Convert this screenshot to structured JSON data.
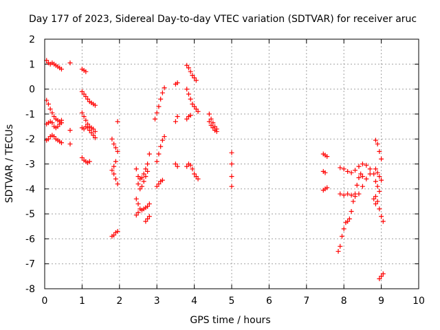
{
  "chart_data": {
    "type": "scatter",
    "title": "Day 177 of 2023, Sidereal Day-to-day VTEC variation (SDTVAR) for receiver aruc",
    "xlabel": "GPS time / hours",
    "ylabel": "SDTVAR / TECUs",
    "xlim": [
      0,
      10
    ],
    "ylim": [
      -8,
      2
    ],
    "xticks": [
      0,
      1,
      2,
      3,
      4,
      5,
      6,
      7,
      8,
      9,
      10
    ],
    "yticks": [
      -8,
      -7,
      -6,
      -5,
      -4,
      -3,
      -2,
      -1,
      0,
      1,
      2
    ],
    "grid": true,
    "marker": "+",
    "marker_color": "#ff0000",
    "series": [
      {
        "name": "SDTVAR",
        "points": [
          [
            0.05,
            1.15
          ],
          [
            0.1,
            1.05
          ],
          [
            0.15,
            1.0
          ],
          [
            0.2,
            1.05
          ],
          [
            0.25,
            1.0
          ],
          [
            0.3,
            0.95
          ],
          [
            0.35,
            0.9
          ],
          [
            0.4,
            0.85
          ],
          [
            0.45,
            0.8
          ],
          [
            0.68,
            1.05
          ],
          [
            0.05,
            -0.45
          ],
          [
            0.1,
            -0.6
          ],
          [
            0.15,
            -0.8
          ],
          [
            0.2,
            -0.95
          ],
          [
            0.25,
            -1.1
          ],
          [
            0.3,
            -1.2
          ],
          [
            0.35,
            -1.25
          ],
          [
            0.4,
            -1.3
          ],
          [
            0.45,
            -1.25
          ],
          [
            0.05,
            -1.4
          ],
          [
            0.1,
            -1.35
          ],
          [
            0.15,
            -1.3
          ],
          [
            0.2,
            -1.35
          ],
          [
            0.25,
            -1.5
          ],
          [
            0.3,
            -1.55
          ],
          [
            0.35,
            -1.5
          ],
          [
            0.4,
            -1.4
          ],
          [
            0.45,
            -1.35
          ],
          [
            0.05,
            -2.05
          ],
          [
            0.1,
            -2.0
          ],
          [
            0.15,
            -1.9
          ],
          [
            0.2,
            -1.85
          ],
          [
            0.25,
            -1.9
          ],
          [
            0.3,
            -2.0
          ],
          [
            0.35,
            -2.05
          ],
          [
            0.4,
            -2.1
          ],
          [
            0.45,
            -2.15
          ],
          [
            0.68,
            -1.65
          ],
          [
            0.68,
            -2.2
          ],
          [
            1.0,
            0.8
          ],
          [
            1.05,
            0.75
          ],
          [
            1.1,
            0.7
          ],
          [
            1.0,
            -0.1
          ],
          [
            1.05,
            -0.2
          ],
          [
            1.1,
            -0.3
          ],
          [
            1.15,
            -0.4
          ],
          [
            1.2,
            -0.5
          ],
          [
            1.25,
            -0.55
          ],
          [
            1.3,
            -0.6
          ],
          [
            1.35,
            -0.65
          ],
          [
            1.0,
            -0.95
          ],
          [
            1.05,
            -1.1
          ],
          [
            1.1,
            -1.25
          ],
          [
            1.15,
            -1.4
          ],
          [
            1.2,
            -1.5
          ],
          [
            1.25,
            -1.55
          ],
          [
            1.3,
            -1.6
          ],
          [
            1.35,
            -1.7
          ],
          [
            1.0,
            -1.55
          ],
          [
            1.05,
            -1.6
          ],
          [
            1.1,
            -1.5
          ],
          [
            1.15,
            -1.55
          ],
          [
            1.2,
            -1.65
          ],
          [
            1.25,
            -1.75
          ],
          [
            1.3,
            -1.85
          ],
          [
            1.35,
            -1.95
          ],
          [
            1.0,
            -2.75
          ],
          [
            1.05,
            -2.85
          ],
          [
            1.1,
            -2.9
          ],
          [
            1.15,
            -2.95
          ],
          [
            1.2,
            -2.9
          ],
          [
            1.8,
            -2.0
          ],
          [
            1.85,
            -2.2
          ],
          [
            1.9,
            -2.35
          ],
          [
            1.95,
            -2.5
          ],
          [
            1.8,
            -3.25
          ],
          [
            1.85,
            -3.4
          ],
          [
            1.9,
            -3.6
          ],
          [
            1.95,
            -3.8
          ],
          [
            1.85,
            -3.1
          ],
          [
            1.9,
            -2.9
          ],
          [
            1.8,
            -5.9
          ],
          [
            1.85,
            -5.85
          ],
          [
            1.9,
            -5.75
          ],
          [
            1.95,
            -5.7
          ],
          [
            1.95,
            -1.3
          ],
          [
            2.45,
            -3.2
          ],
          [
            2.5,
            -3.5
          ],
          [
            2.55,
            -3.6
          ],
          [
            2.6,
            -3.55
          ],
          [
            2.65,
            -3.4
          ],
          [
            2.7,
            -3.2
          ],
          [
            2.75,
            -3.0
          ],
          [
            2.8,
            -2.6
          ],
          [
            2.45,
            -4.4
          ],
          [
            2.5,
            -4.6
          ],
          [
            2.55,
            -4.8
          ],
          [
            2.6,
            -4.85
          ],
          [
            2.65,
            -4.8
          ],
          [
            2.7,
            -4.75
          ],
          [
            2.75,
            -4.7
          ],
          [
            2.8,
            -4.6
          ],
          [
            2.5,
            -3.8
          ],
          [
            2.55,
            -4.0
          ],
          [
            2.6,
            -3.9
          ],
          [
            2.65,
            -3.7
          ],
          [
            2.7,
            -3.5
          ],
          [
            2.75,
            -3.3
          ],
          [
            2.45,
            -5.05
          ],
          [
            2.5,
            -4.95
          ],
          [
            2.7,
            -5.3
          ],
          [
            2.75,
            -5.2
          ],
          [
            2.8,
            -5.1
          ],
          [
            3.0,
            -0.95
          ],
          [
            3.05,
            -0.7
          ],
          [
            3.1,
            -0.4
          ],
          [
            3.15,
            -0.15
          ],
          [
            3.2,
            0.05
          ],
          [
            2.95,
            -1.2
          ],
          [
            3.0,
            -2.9
          ],
          [
            3.05,
            -2.6
          ],
          [
            3.1,
            -2.3
          ],
          [
            3.15,
            -2.05
          ],
          [
            3.2,
            -1.9
          ],
          [
            3.0,
            -3.9
          ],
          [
            3.05,
            -3.8
          ],
          [
            3.1,
            -3.7
          ],
          [
            3.15,
            -3.65
          ],
          [
            3.5,
            0.2
          ],
          [
            3.55,
            0.25
          ],
          [
            3.5,
            -1.3
          ],
          [
            3.55,
            -1.1
          ],
          [
            3.5,
            -3.0
          ],
          [
            3.55,
            -3.1
          ],
          [
            3.8,
            0.95
          ],
          [
            3.85,
            0.85
          ],
          [
            3.9,
            0.7
          ],
          [
            3.95,
            0.55
          ],
          [
            4.0,
            0.45
          ],
          [
            4.05,
            0.35
          ],
          [
            3.8,
            0.0
          ],
          [
            3.85,
            -0.2
          ],
          [
            3.9,
            -0.4
          ],
          [
            3.95,
            -0.6
          ],
          [
            4.0,
            -0.7
          ],
          [
            4.05,
            -0.8
          ],
          [
            4.1,
            -0.9
          ],
          [
            3.8,
            -1.2
          ],
          [
            3.85,
            -1.1
          ],
          [
            3.9,
            -1.05
          ],
          [
            3.8,
            -3.1
          ],
          [
            3.85,
            -3.0
          ],
          [
            3.9,
            -3.05
          ],
          [
            3.95,
            -3.2
          ],
          [
            4.0,
            -3.4
          ],
          [
            4.05,
            -3.5
          ],
          [
            4.1,
            -3.6
          ],
          [
            4.4,
            -1.0
          ],
          [
            4.45,
            -1.2
          ],
          [
            4.5,
            -1.35
          ],
          [
            4.55,
            -1.5
          ],
          [
            4.6,
            -1.6
          ],
          [
            4.4,
            -1.3
          ],
          [
            4.45,
            -1.45
          ],
          [
            4.5,
            -1.55
          ],
          [
            4.55,
            -1.65
          ],
          [
            4.6,
            -1.7
          ],
          [
            5.0,
            -2.55
          ],
          [
            5.0,
            -3.0
          ],
          [
            5.0,
            -3.5
          ],
          [
            5.0,
            -3.9
          ],
          [
            7.45,
            -2.6
          ],
          [
            7.5,
            -2.65
          ],
          [
            7.55,
            -2.7
          ],
          [
            7.45,
            -3.3
          ],
          [
            7.5,
            -3.35
          ],
          [
            7.45,
            -4.05
          ],
          [
            7.5,
            -4.0
          ],
          [
            7.55,
            -3.95
          ],
          [
            7.85,
            -6.5
          ],
          [
            7.9,
            -6.3
          ],
          [
            7.95,
            -5.9
          ],
          [
            8.0,
            -5.6
          ],
          [
            8.05,
            -5.35
          ],
          [
            8.1,
            -5.3
          ],
          [
            8.15,
            -5.2
          ],
          [
            8.2,
            -4.9
          ],
          [
            8.25,
            -4.5
          ],
          [
            8.3,
            -4.2
          ],
          [
            8.35,
            -3.85
          ],
          [
            8.4,
            -3.55
          ],
          [
            8.45,
            -3.4
          ],
          [
            8.5,
            -3.5
          ],
          [
            7.9,
            -3.15
          ],
          [
            8.0,
            -3.2
          ],
          [
            8.1,
            -3.3
          ],
          [
            8.2,
            -3.35
          ],
          [
            8.3,
            -3.25
          ],
          [
            8.4,
            -3.1
          ],
          [
            8.5,
            -3.0
          ],
          [
            8.6,
            -3.05
          ],
          [
            8.7,
            -3.2
          ],
          [
            8.8,
            -3.4
          ],
          [
            7.9,
            -4.2
          ],
          [
            8.0,
            -4.25
          ],
          [
            8.1,
            -4.2
          ],
          [
            8.2,
            -4.25
          ],
          [
            8.3,
            -4.3
          ],
          [
            8.4,
            -4.2
          ],
          [
            8.5,
            -3.9
          ],
          [
            8.6,
            -3.6
          ],
          [
            8.7,
            -3.4
          ],
          [
            8.85,
            -2.05
          ],
          [
            8.9,
            -2.2
          ],
          [
            8.95,
            -2.5
          ],
          [
            9.0,
            -2.8
          ],
          [
            8.85,
            -3.2
          ],
          [
            8.9,
            -3.35
          ],
          [
            8.95,
            -3.5
          ],
          [
            9.0,
            -3.65
          ],
          [
            8.85,
            -3.7
          ],
          [
            8.9,
            -3.9
          ],
          [
            8.95,
            -4.1
          ],
          [
            8.85,
            -4.3
          ],
          [
            8.9,
            -4.5
          ],
          [
            8.95,
            -4.8
          ],
          [
            9.0,
            -5.1
          ],
          [
            9.05,
            -5.3
          ],
          [
            8.8,
            -4.4
          ],
          [
            8.85,
            -4.6
          ],
          [
            8.95,
            -7.6
          ],
          [
            9.0,
            -7.5
          ],
          [
            9.05,
            -7.4
          ]
        ]
      }
    ]
  }
}
